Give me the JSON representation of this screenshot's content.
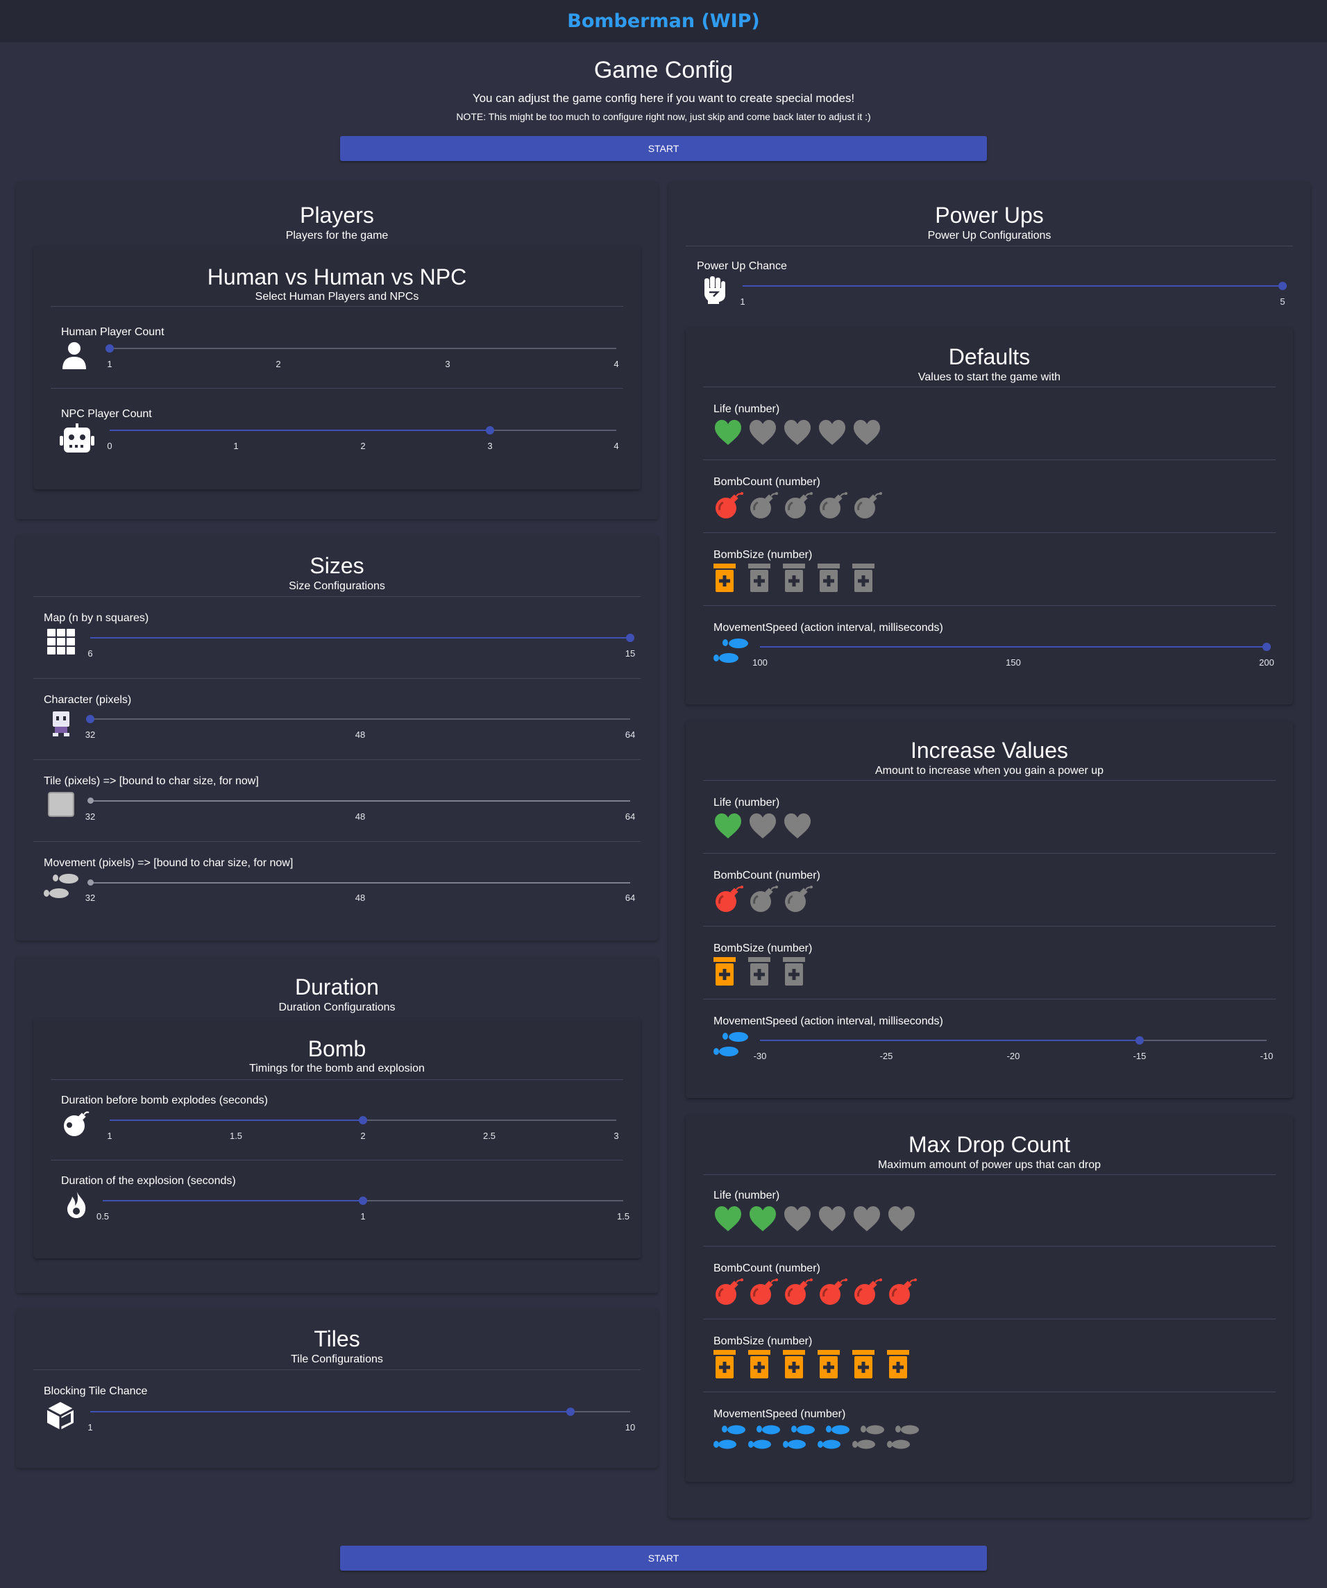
{
  "app": {
    "title": "Bomberman (WIP)"
  },
  "header": {
    "title": "Game Config",
    "subtitle": "You can adjust the game config here if you want to create special modes!",
    "note": "NOTE: This might be too much to configure right now, just skip and come back later to adjust it :)"
  },
  "buttons": {
    "start_top": "START",
    "start_bottom": "START"
  },
  "colors": {
    "accent": "#3f51b5",
    "title": "#2f9cf0",
    "heart_on": "#4caf50",
    "bomb_on": "#f44336",
    "size_on": "#ff9800",
    "speed_on": "#2196f3",
    "off": "#808080"
  },
  "players": {
    "title": "Players",
    "subtitle": "Players for the game",
    "mode": {
      "title": "Human vs Human vs NPC",
      "subtitle": "Select Human Players and NPCs",
      "human": {
        "label": "Human Player Count",
        "value": 1,
        "ticks": [
          "1",
          "2",
          "3",
          "4"
        ]
      },
      "npc": {
        "label": "NPC Player Count",
        "value": 3,
        "ticks": [
          "0",
          "1",
          "2",
          "3",
          "4"
        ]
      }
    }
  },
  "sizes": {
    "title": "Sizes",
    "subtitle": "Size Configurations",
    "map": {
      "label": "Map (n by n squares)",
      "value": 15,
      "ticks": [
        "6",
        "15"
      ]
    },
    "character": {
      "label": "Character (pixels)",
      "value": 32,
      "ticks": [
        "32",
        "48",
        "64"
      ]
    },
    "tile": {
      "label": "Tile (pixels) => [bound to char size, for now]",
      "value": 32,
      "ticks": [
        "32",
        "48",
        "64"
      ]
    },
    "movement": {
      "label": "Movement (pixels) => [bound to char size, for now]",
      "value": 32,
      "ticks": [
        "32",
        "48",
        "64"
      ]
    }
  },
  "duration": {
    "title": "Duration",
    "subtitle": "Duration Configurations",
    "bomb": {
      "title": "Bomb",
      "subtitle": "Timings for the bomb and explosion",
      "explode": {
        "label": "Duration before bomb explodes (seconds)",
        "value": 2,
        "ticks": [
          "1",
          "1.5",
          "2",
          "2.5",
          "3"
        ]
      },
      "explosion": {
        "label": "Duration of the explosion (seconds)",
        "value": 1,
        "ticks": [
          "0.5",
          "1",
          "1.5"
        ]
      }
    }
  },
  "tiles": {
    "title": "Tiles",
    "subtitle": "Tile Configurations",
    "blocking": {
      "label": "Blocking Tile Chance",
      "value": 9,
      "ticks": [
        "1",
        "10"
      ]
    }
  },
  "powerups": {
    "title": "Power Ups",
    "subtitle": "Power Up Configurations",
    "chance": {
      "label": "Power Up Chance",
      "value": 5,
      "ticks": [
        "1",
        "5"
      ]
    },
    "defaults": {
      "title": "Defaults",
      "subtitle": "Values to start the game with",
      "life": {
        "label": "Life (number)",
        "value": 1,
        "max": 5
      },
      "bombcount": {
        "label": "BombCount (number)",
        "value": 1,
        "max": 5
      },
      "bombsize": {
        "label": "BombSize (number)",
        "value": 1,
        "max": 5
      },
      "speed": {
        "label": "MovementSpeed (action interval, milliseconds)",
        "value": 200,
        "ticks": [
          "100",
          "150",
          "200"
        ]
      }
    },
    "increase": {
      "title": "Increase Values",
      "subtitle": "Amount to increase when you gain a power up",
      "life": {
        "label": "Life (number)",
        "value": 1,
        "max": 3
      },
      "bombcount": {
        "label": "BombCount (number)",
        "value": 1,
        "max": 3
      },
      "bombsize": {
        "label": "BombSize (number)",
        "value": 1,
        "max": 3
      },
      "speed": {
        "label": "MovementSpeed (action interval, milliseconds)",
        "value": -15,
        "ticks": [
          "-30",
          "-25",
          "-20",
          "-15",
          "-10"
        ]
      }
    },
    "maxdrop": {
      "title": "Max Drop Count",
      "subtitle": "Maximum amount of power ups that can drop",
      "life": {
        "label": "Life (number)",
        "value": 2,
        "max": 6
      },
      "bombcount": {
        "label": "BombCount (number)",
        "value": 6,
        "max": 6
      },
      "bombsize": {
        "label": "BombSize (number)",
        "value": 6,
        "max": 6
      },
      "speed": {
        "label": "MovementSpeed (number)",
        "value": 4,
        "max": 6
      }
    }
  }
}
